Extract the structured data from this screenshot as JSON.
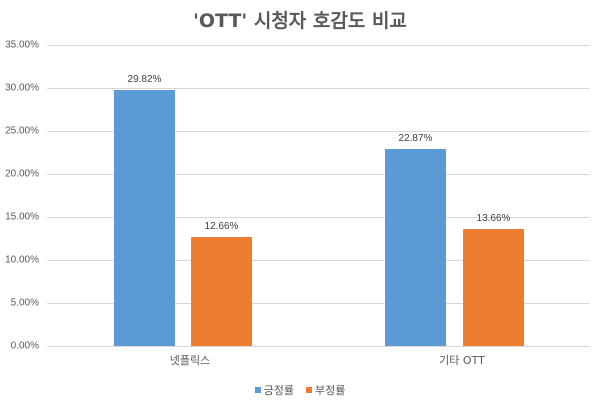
{
  "chart_data": {
    "type": "bar",
    "title": "'OTT' 시청자 호감도 비교",
    "categories": [
      "넷플릭스",
      "기타 OTT"
    ],
    "series": [
      {
        "name": "긍정률",
        "color": "#5b9bd5",
        "values": [
          29.82,
          22.87
        ],
        "labels": [
          "29.82%",
          "22.87%"
        ]
      },
      {
        "name": "부정률",
        "color": "#ed7d31",
        "values": [
          12.66,
          13.66
        ],
        "labels": [
          "12.66%",
          "13.66%"
        ]
      }
    ],
    "xlabel": "",
    "ylabel": "",
    "ylim": [
      0,
      35
    ],
    "yticks": [
      "0.00%",
      "5.00%",
      "10.00%",
      "15.00%",
      "20.00%",
      "25.00%",
      "30.00%",
      "35.00%"
    ],
    "grid": true,
    "legend_position": "bottom"
  }
}
